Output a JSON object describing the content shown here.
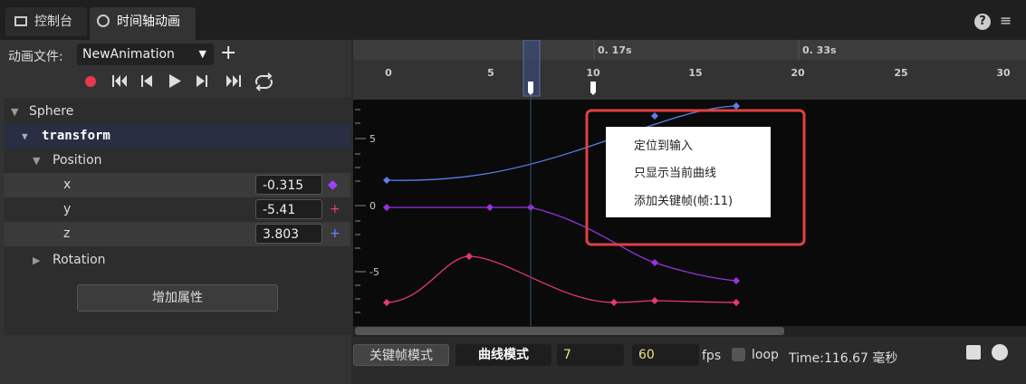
{
  "tabs": [
    "控制台",
    "时间轴动画"
  ],
  "toolbar": {
    "file_label": "动画文件:",
    "file_name": "NewAnimation"
  },
  "tree": {
    "object": "Sphere",
    "component": "transform",
    "property": "Position",
    "fields": [
      {
        "axis": "x",
        "value": "-0.315"
      },
      {
        "axis": "y",
        "value": "-5.41"
      },
      {
        "axis": "z",
        "value": "3.803"
      }
    ],
    "collapsed": "Rotation"
  },
  "add_property": "增加属性",
  "timeline": {
    "time_marks": [
      "0. 17s",
      "0. 33s"
    ],
    "frame_ticks": [
      "0",
      "5",
      "10",
      "15",
      "20",
      "25",
      "30"
    ],
    "value_ticks": [
      "5",
      "0",
      "-5"
    ]
  },
  "context_menu": [
    "定位到输入",
    "只显示当前曲线",
    "添加关键帧(帧:11)"
  ],
  "footer": {
    "keyframe_mode": "关键帧模式",
    "curve_mode": "曲线模式",
    "frame": "7",
    "fps_value": "60",
    "fps_label": "fps",
    "loop": "loop",
    "time": "Time:116.67 毫秒"
  }
}
